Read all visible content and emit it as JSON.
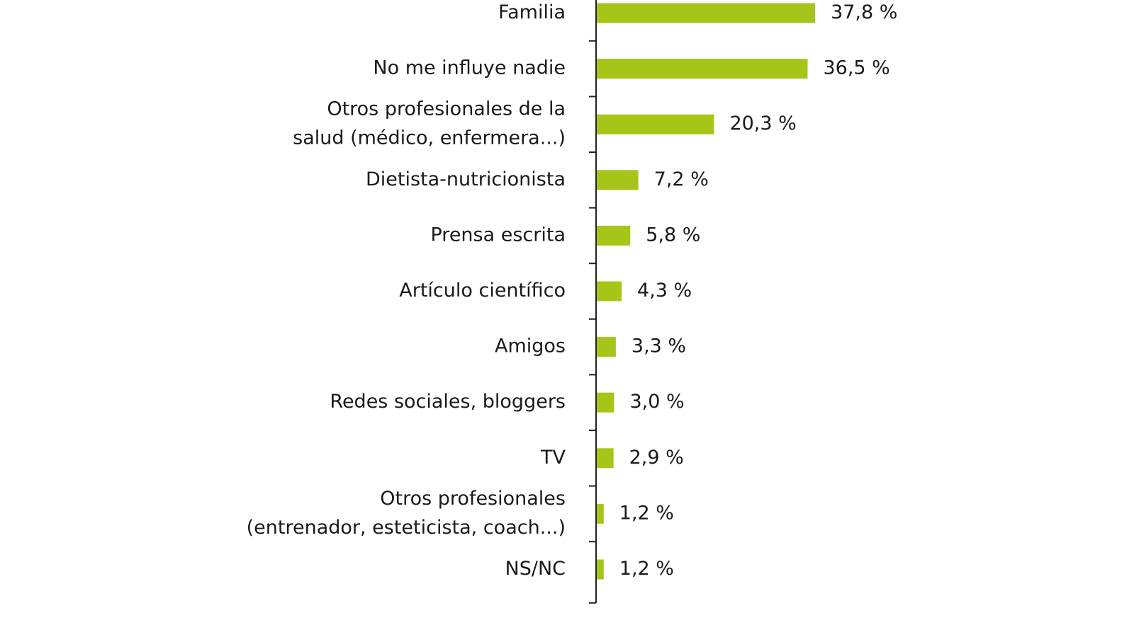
{
  "chart_data": {
    "type": "barh",
    "categories": [
      [
        "Familia"
      ],
      [
        "No me influye nadie"
      ],
      [
        "Otros profesionales de la",
        "salud (médico, enfermera...)"
      ],
      [
        "Dietista-nutricionista"
      ],
      [
        "Prensa escrita"
      ],
      [
        "Artículo científico"
      ],
      [
        "Amigos"
      ],
      [
        "Redes sociales, bloggers"
      ],
      [
        "TV"
      ],
      [
        "Otros profesionales",
        "(entrenador, esteticista, coach...)"
      ],
      [
        "NS/NC"
      ]
    ],
    "values": [
      37.8,
      36.5,
      20.3,
      7.2,
      5.8,
      4.3,
      3.3,
      3.0,
      2.9,
      1.2,
      1.2
    ],
    "value_labels": [
      "37,8 %",
      "36,5 %",
      "20,3 %",
      "7,2 %",
      "5,8 %",
      "4,3 %",
      "3,3 %",
      "3,0 %",
      "2,9 %",
      "1,2 %",
      "1,2 %"
    ],
    "color": "#a5c619"
  }
}
